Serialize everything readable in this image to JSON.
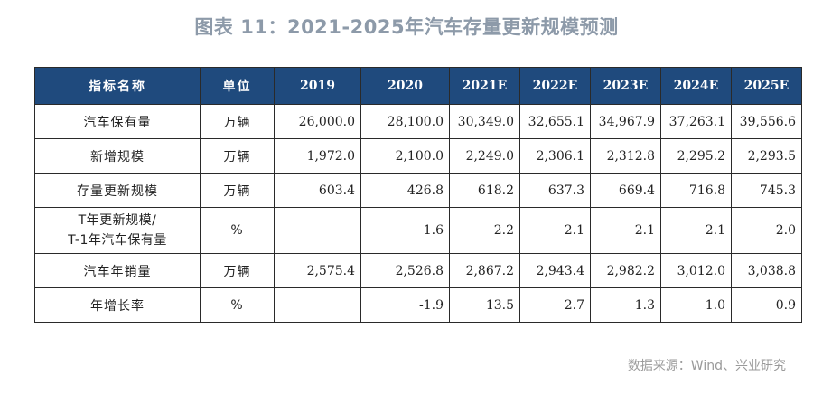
{
  "title": "图表 11：2021-2025年汽车存量更新规模预测",
  "table": {
    "headers": [
      "指标名称",
      "单位",
      "2019",
      "2020",
      "2021E",
      "2022E",
      "2023E",
      "2024E",
      "2025E"
    ],
    "rows": [
      {
        "label": "汽车保有量",
        "unit": "万辆",
        "values": [
          "26,000.0",
          "28,100.0",
          "30,349.0",
          "32,655.1",
          "34,967.9",
          "37,263.1",
          "39,556.6"
        ]
      },
      {
        "label": "新增规模",
        "unit": "万辆",
        "values": [
          "1,972.0",
          "2,100.0",
          "2,249.0",
          "2,306.1",
          "2,312.8",
          "2,295.2",
          "2,293.5"
        ]
      },
      {
        "label": "存量更新规模",
        "unit": "万辆",
        "values": [
          "603.4",
          "426.8",
          "618.2",
          "637.3",
          "669.4",
          "716.8",
          "745.3"
        ]
      },
      {
        "label": "T年更新规模/",
        "label2": "T-1年汽车保有量",
        "unit": "%",
        "values": [
          "",
          "1.6",
          "2.2",
          "2.1",
          "2.1",
          "2.1",
          "2.0"
        ]
      },
      {
        "label": "汽车年销量",
        "unit": "万辆",
        "values": [
          "2,575.4",
          "2,526.8",
          "2,867.2",
          "2,943.4",
          "2,982.2",
          "3,012.0",
          "3,038.8"
        ]
      },
      {
        "label": "年增长率",
        "unit": "%",
        "values": [
          "",
          "-1.9",
          "13.5",
          "2.7",
          "1.3",
          "1.0",
          "0.9"
        ]
      }
    ]
  },
  "source": "数据来源：Wind、兴业研究",
  "colors": {
    "header_bg": "#1f4a7d",
    "title": "#8d9aa9",
    "source": "#9a9a9a"
  }
}
